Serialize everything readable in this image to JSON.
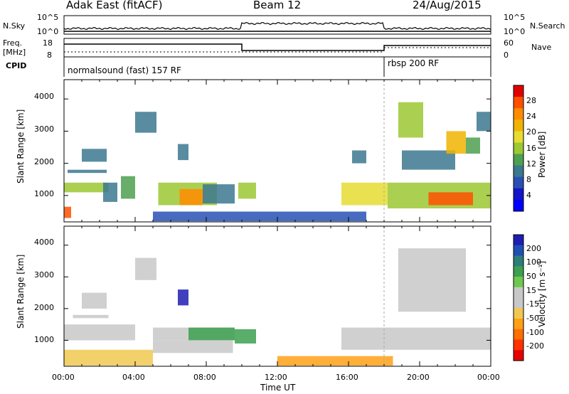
{
  "header": {
    "title": "Adak East (fitACF)",
    "beam": "Beam 12",
    "date": "24/Aug/2015"
  },
  "noise_panel": {
    "left_label": "N.Sky",
    "right_label": "N.Search",
    "left_ticks": [
      "10^5",
      "10^0"
    ],
    "right_ticks": [
      "10^5",
      "10^0"
    ]
  },
  "freq_panel": {
    "left_label_1": "Freq.",
    "left_label_2": "[MHz]",
    "right_label": "Nave",
    "left_ticks": [
      "18",
      "8"
    ],
    "right_ticks": [
      "60",
      "0"
    ]
  },
  "cpid": {
    "label": "CPID",
    "modes": [
      {
        "name": "normalsound (fast) 157 RF",
        "start_hour": 0,
        "end_hour": 18
      },
      {
        "name": "rbsp 200 RF",
        "start_hour": 18,
        "end_hour": 24
      }
    ]
  },
  "axes": {
    "y_label": "Slant Range [km]",
    "x_label": "Time UT",
    "y_ticks": [
      "4000",
      "3000",
      "2000",
      "1000"
    ],
    "x_ticks": [
      "00:00",
      "04:00",
      "08:00",
      "12:00",
      "16:00",
      "20:00",
      "00:00"
    ]
  },
  "power_colorbar": {
    "label": "Power [dB]",
    "ticks": [
      "28",
      "24",
      "20",
      "16",
      "12",
      "8",
      "4"
    ],
    "colors": [
      "#e00000",
      "#ff5000",
      "#ff8c00",
      "#f0b400",
      "#e6dc32",
      "#9cc832",
      "#4ea050",
      "#3c7890",
      "#2850b4",
      "#1414c8",
      "#0000ff"
    ]
  },
  "velocity_colorbar": {
    "label": "Velocity [m s⁻¹]",
    "ticks": [
      "200",
      "100",
      "50",
      "15",
      "-15",
      "-50",
      "-100",
      "-200"
    ],
    "colors": [
      "#1e1eb4",
      "#1e50b4",
      "#2d7d78",
      "#3ca050",
      "#6ec850",
      "#c8c8c8",
      "#c8c8c8",
      "#f0c850",
      "#ffa014",
      "#ff6e00",
      "#ff3200",
      "#e60000"
    ]
  },
  "chart_data": {
    "type": "heatmap",
    "x_range_hours": [
      0,
      24
    ],
    "y_range_km": [
      180,
      4600
    ],
    "power_regions": [
      {
        "t0": 0.0,
        "t1": 2.5,
        "r0": 1100,
        "r1": 1400,
        "value_db": 14
      },
      {
        "t0": 0.2,
        "t1": 2.4,
        "r0": 1700,
        "r1": 1800,
        "value_db": 8
      },
      {
        "t0": 1.0,
        "t1": 2.4,
        "r0": 2050,
        "r1": 2450,
        "value_db": 10
      },
      {
        "t0": 2.2,
        "t1": 3.0,
        "r0": 800,
        "r1": 1400,
        "value_db": 10
      },
      {
        "t0": 3.2,
        "t1": 4.0,
        "r0": 900,
        "r1": 1600,
        "value_db": 12
      },
      {
        "t0": 4.0,
        "t1": 5.2,
        "r0": 2950,
        "r1": 3600,
        "value_db": 8
      },
      {
        "t0": 5.3,
        "t1": 8.6,
        "r0": 700,
        "r1": 1400,
        "value_db": 16
      },
      {
        "t0": 6.5,
        "t1": 7.8,
        "r0": 700,
        "r1": 1200,
        "value_db": 24
      },
      {
        "t0": 6.4,
        "t1": 7.0,
        "r0": 2100,
        "r1": 2600,
        "value_db": 10
      },
      {
        "t0": 7.8,
        "t1": 9.6,
        "r0": 750,
        "r1": 1350,
        "value_db": 8
      },
      {
        "t0": 9.8,
        "t1": 10.8,
        "r0": 900,
        "r1": 1400,
        "value_db": 14
      },
      {
        "t0": 0.0,
        "t1": 0.4,
        "r0": 300,
        "r1": 650,
        "value_db": 26
      },
      {
        "t0": 5.0,
        "t1": 17.0,
        "r0": 200,
        "r1": 500,
        "value_db": 6
      },
      {
        "t0": 15.6,
        "t1": 18.2,
        "r0": 700,
        "r1": 1400,
        "value_db": 18
      },
      {
        "t0": 18.2,
        "t1": 24.0,
        "r0": 600,
        "r1": 1400,
        "value_db": 14
      },
      {
        "t0": 20.5,
        "t1": 23.0,
        "r0": 700,
        "r1": 1100,
        "value_db": 26
      },
      {
        "t0": 19.0,
        "t1": 22.0,
        "r0": 1800,
        "r1": 2400,
        "value_db": 10
      },
      {
        "t0": 18.8,
        "t1": 20.2,
        "r0": 2800,
        "r1": 3900,
        "value_db": 16
      },
      {
        "t0": 21.5,
        "t1": 22.6,
        "r0": 2300,
        "r1": 3000,
        "value_db": 20
      },
      {
        "t0": 22.6,
        "t1": 23.4,
        "r0": 2300,
        "r1": 2800,
        "value_db": 12
      },
      {
        "t0": 23.2,
        "t1": 24.0,
        "r0": 3000,
        "r1": 3600,
        "value_db": 8
      },
      {
        "t0": 16.2,
        "t1": 17.0,
        "r0": 2000,
        "r1": 2400,
        "value_db": 8
      }
    ],
    "velocity_regions": [
      {
        "t0": 0.0,
        "t1": 4.0,
        "r0": 1000,
        "r1": 1500,
        "value_ms": 0
      },
      {
        "t0": 0.5,
        "t1": 2.5,
        "r0": 1700,
        "r1": 1800,
        "value_ms": 0
      },
      {
        "t0": 1.0,
        "t1": 2.4,
        "r0": 2000,
        "r1": 2500,
        "value_ms": 0
      },
      {
        "t0": 0.0,
        "t1": 5.0,
        "r0": 200,
        "r1": 700,
        "value_ms": -40
      },
      {
        "t0": 5.0,
        "t1": 9.6,
        "r0": 1000,
        "r1": 1400,
        "value_ms": 0
      },
      {
        "t0": 7.0,
        "t1": 9.6,
        "r0": 1000,
        "r1": 1400,
        "value_ms": 60
      },
      {
        "t0": 9.6,
        "t1": 10.8,
        "r0": 900,
        "r1": 1350,
        "value_ms": 40
      },
      {
        "t0": 6.4,
        "t1": 7.0,
        "r0": 2100,
        "r1": 2600,
        "value_ms": 220
      },
      {
        "t0": 5.0,
        "t1": 9.5,
        "r0": 600,
        "r1": 1000,
        "value_ms": 0
      },
      {
        "t0": 12.0,
        "t1": 18.5,
        "r0": 200,
        "r1": 500,
        "value_ms": -70
      },
      {
        "t0": 15.6,
        "t1": 24.0,
        "r0": 700,
        "r1": 1400,
        "value_ms": 0
      },
      {
        "t0": 18.8,
        "t1": 22.6,
        "r0": 1900,
        "r1": 3900,
        "value_ms": 0
      },
      {
        "t0": 4.0,
        "t1": 5.2,
        "r0": 2900,
        "r1": 3600,
        "value_ms": 0
      }
    ]
  }
}
